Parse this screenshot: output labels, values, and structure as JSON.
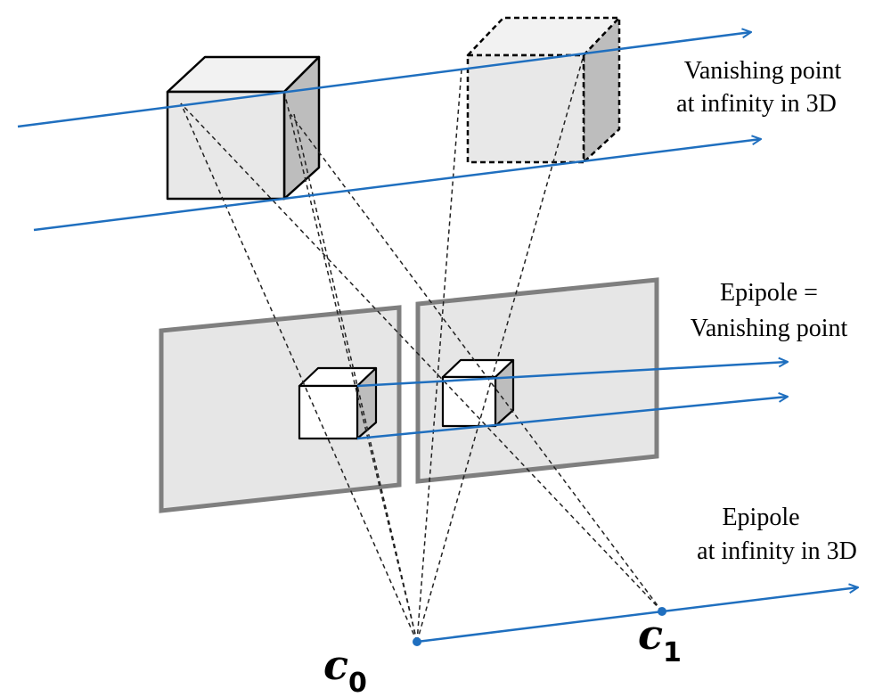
{
  "labels": {
    "vanishing_3d_line1": "Vanishing point",
    "vanishing_3d_line2": "at infinity in 3D",
    "epipole_eq_line1": "Epipole =",
    "epipole_eq_line2": "Vanishing point",
    "epipole_inf_line1": "Epipole",
    "epipole_inf_line2": "at infinity in 3D"
  },
  "cameras": {
    "c0_letter": "c",
    "c0_sub": "0",
    "c1_letter": "c",
    "c1_sub": "1"
  },
  "colors": {
    "ray_blue": "#1f6fbf",
    "plane_fill": "#e6e6e6",
    "plane_stroke": "#7f7f7f",
    "cube_front": "#e8e8e8",
    "cube_top": "#f2f2f2",
    "cube_side": "#bdbdbd",
    "dashed": "#222222"
  }
}
